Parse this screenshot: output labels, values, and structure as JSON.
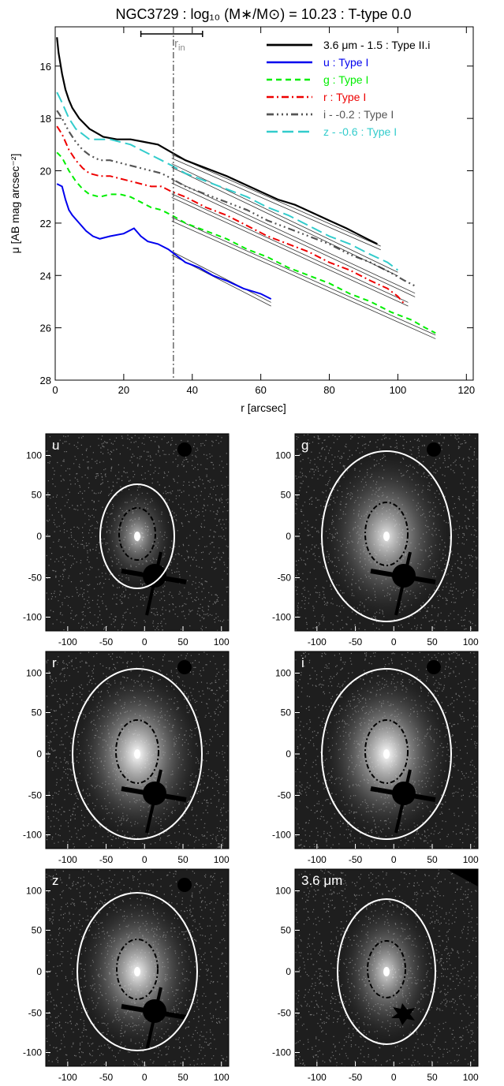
{
  "profile": {
    "title": "NGC3729 : log₁₀ (M∗/M⊙) = 10.23 : T-type 0.0",
    "xlabel": "r [arcsec]",
    "ylabel": "μ [AB mag arcsec⁻²]",
    "rin_label": "r",
    "rin_sub": "in",
    "chart_data": {
      "type": "line",
      "xlim": [
        0,
        122
      ],
      "ylim": [
        28,
        14.5
      ],
      "y_inverted": true,
      "xticks": [
        0,
        20,
        40,
        60,
        80,
        100,
        120
      ],
      "yticks": [
        16,
        18,
        20,
        22,
        24,
        26,
        28
      ],
      "grid": false,
      "legend_position": "top-right",
      "r_in": 34.5,
      "r_in_errorbar": [
        25,
        43
      ],
      "series": [
        {
          "name": "3.6 μm - 1.5 : Type II.i",
          "color": "#000000",
          "dash": "",
          "width": 2.2,
          "x": [
            0.5,
            1,
            2,
            3,
            4,
            5,
            7,
            10,
            14,
            18,
            22,
            26,
            30,
            34,
            38,
            42,
            46,
            50,
            55,
            60,
            65,
            70,
            75,
            80,
            85,
            88,
            91,
            94
          ],
          "y": [
            14.9,
            15.5,
            16.3,
            16.9,
            17.3,
            17.6,
            18.0,
            18.4,
            18.7,
            18.8,
            18.8,
            18.9,
            19.0,
            19.3,
            19.6,
            19.8,
            20.0,
            20.2,
            20.5,
            20.8,
            21.1,
            21.3,
            21.6,
            21.9,
            22.2,
            22.4,
            22.6,
            22.8
          ],
          "fit_x": [
            34,
            95
          ],
          "fit_y": [
            19.45,
            22.95
          ]
        },
        {
          "name": "u : Type I",
          "color": "#0000ee",
          "dash": "",
          "width": 2,
          "x": [
            0.5,
            2,
            3,
            4,
            5,
            7,
            9,
            11,
            13,
            16,
            20,
            23,
            25,
            27,
            30,
            33,
            35,
            38,
            42,
            46,
            50,
            55,
            60,
            63
          ],
          "y": [
            20.5,
            20.6,
            21.1,
            21.5,
            21.7,
            22.0,
            22.3,
            22.5,
            22.6,
            22.5,
            22.4,
            22.2,
            22.5,
            22.7,
            22.8,
            23.0,
            23.2,
            23.5,
            23.7,
            24.0,
            24.2,
            24.5,
            24.7,
            24.9
          ],
          "fit_x": [
            34,
            63
          ],
          "fit_y": [
            23.15,
            25.1
          ]
        },
        {
          "name": "g : Type I",
          "color": "#00ee00",
          "dash": "7,5",
          "width": 2,
          "x": [
            0.5,
            2,
            4,
            6,
            8,
            10,
            13,
            16,
            19,
            22,
            25,
            28,
            31,
            34,
            38,
            44,
            50,
            56,
            62,
            68,
            74,
            80,
            86,
            92,
            98,
            104,
            108,
            111
          ],
          "y": [
            19.3,
            19.5,
            20.0,
            20.4,
            20.7,
            20.9,
            21.0,
            20.9,
            20.9,
            21.0,
            21.2,
            21.4,
            21.5,
            21.7,
            22.0,
            22.3,
            22.6,
            23.0,
            23.3,
            23.7,
            24.0,
            24.3,
            24.7,
            25.0,
            25.4,
            25.7,
            26.0,
            26.2
          ],
          "fit_x": [
            34,
            111
          ],
          "fit_y": [
            21.85,
            26.35
          ]
        },
        {
          "name": "r : Type I",
          "color": "#ee0000",
          "dash": "9,4,2,4",
          "width": 2,
          "x": [
            0.5,
            2,
            4,
            6,
            8,
            10,
            13,
            16,
            19,
            22,
            25,
            28,
            31,
            34,
            38,
            44,
            50,
            56,
            62,
            68,
            74,
            80,
            86,
            92,
            97,
            100,
            102
          ],
          "y": [
            18.3,
            18.6,
            19.2,
            19.6,
            19.9,
            20.1,
            20.2,
            20.2,
            20.3,
            20.4,
            20.5,
            20.6,
            20.6,
            20.8,
            21.0,
            21.4,
            21.7,
            22.1,
            22.5,
            22.8,
            23.1,
            23.5,
            23.8,
            24.2,
            24.5,
            24.8,
            25.1
          ],
          "fit_x": [
            34,
            103
          ],
          "fit_y": [
            20.95,
            25.1
          ]
        },
        {
          "name": "i - -0.2 : Type I",
          "color": "#555555",
          "dash": "9,4,2,4,2,4,2,4",
          "width": 2.2,
          "x": [
            0.5,
            2,
            4,
            6,
            8,
            10,
            13,
            16,
            19,
            22,
            25,
            28,
            31,
            34,
            38,
            44,
            50,
            56,
            62,
            68,
            74,
            80,
            86,
            92,
            98,
            102,
            105
          ],
          "y": [
            17.7,
            18.0,
            18.5,
            18.9,
            19.2,
            19.4,
            19.6,
            19.6,
            19.7,
            19.8,
            19.9,
            20.0,
            20.1,
            20.3,
            20.6,
            20.9,
            21.2,
            21.5,
            21.9,
            22.2,
            22.5,
            22.8,
            23.2,
            23.5,
            23.9,
            24.2,
            24.4
          ],
          "fit_x": [
            34,
            105
          ],
          "fit_y": [
            20.4,
            24.75
          ]
        },
        {
          "name": "z - -0.6 : Type I",
          "color": "#33cccc",
          "dash": "14,6",
          "width": 2,
          "x": [
            0.5,
            2,
            4,
            6,
            8,
            10,
            13,
            16,
            19,
            22,
            25,
            28,
            31,
            34,
            38,
            44,
            50,
            56,
            62,
            68,
            74,
            80,
            86,
            92,
            97,
            100
          ],
          "y": [
            17.0,
            17.4,
            18.0,
            18.4,
            18.6,
            18.8,
            18.8,
            18.8,
            18.9,
            19.0,
            19.2,
            19.4,
            19.6,
            19.8,
            20.1,
            20.4,
            20.7,
            21.0,
            21.4,
            21.7,
            22.1,
            22.5,
            22.8,
            23.2,
            23.5,
            23.8
          ],
          "fit_x": [
            34,
            100
          ],
          "fit_y": [
            19.8,
            23.95
          ]
        }
      ]
    }
  },
  "panels": [
    {
      "label": "u",
      "ring_ry": 66,
      "ring_rx": 47,
      "inner_ry": 33,
      "inner_rx": 23,
      "brightness": 0.45,
      "xticks": [
        "-100",
        "-50",
        "0",
        "50",
        "100"
      ],
      "yticks": [
        "100",
        "50",
        "0",
        "-50",
        "-100"
      ]
    },
    {
      "label": "g",
      "ring_ry": 108,
      "ring_rx": 82,
      "inner_ry": 40,
      "inner_rx": 27,
      "brightness": 0.6,
      "xticks": [
        "-100",
        "-50",
        "0",
        "50",
        "100"
      ],
      "yticks": [
        "100",
        "50",
        "0",
        "-50",
        "-100"
      ]
    },
    {
      "label": "r",
      "ring_ry": 108,
      "ring_rx": 82,
      "inner_ry": 40,
      "inner_rx": 27,
      "brightness": 0.7,
      "xticks": [
        "-100",
        "-50",
        "0",
        "50",
        "100"
      ],
      "yticks": [
        "100",
        "50",
        "0",
        "-50",
        "-100"
      ]
    },
    {
      "label": "i",
      "ring_ry": 108,
      "ring_rx": 82,
      "inner_ry": 40,
      "inner_rx": 27,
      "brightness": 0.7,
      "xticks": [
        "-100",
        "-50",
        "0",
        "50",
        "100"
      ],
      "yticks": [
        "100",
        "50",
        "0",
        "-50",
        "-100"
      ]
    },
    {
      "label": "z",
      "ring_ry": 100,
      "ring_rx": 76,
      "inner_ry": 38,
      "inner_rx": 26,
      "brightness": 0.65,
      "xticks": [
        "-100",
        "-50",
        "0",
        "50",
        "100"
      ],
      "yticks": [
        "100",
        "50",
        "0",
        "-50",
        "-100"
      ]
    },
    {
      "label": "3.6 μm",
      "ring_ry": 92,
      "ring_rx": 62,
      "inner_ry": 36,
      "inner_rx": 24,
      "brightness": 0.55,
      "xticks": [
        "-100",
        "-50",
        "0",
        "50",
        "100"
      ],
      "yticks": [
        "100",
        "50",
        "0",
        "-50",
        "-100"
      ]
    }
  ]
}
